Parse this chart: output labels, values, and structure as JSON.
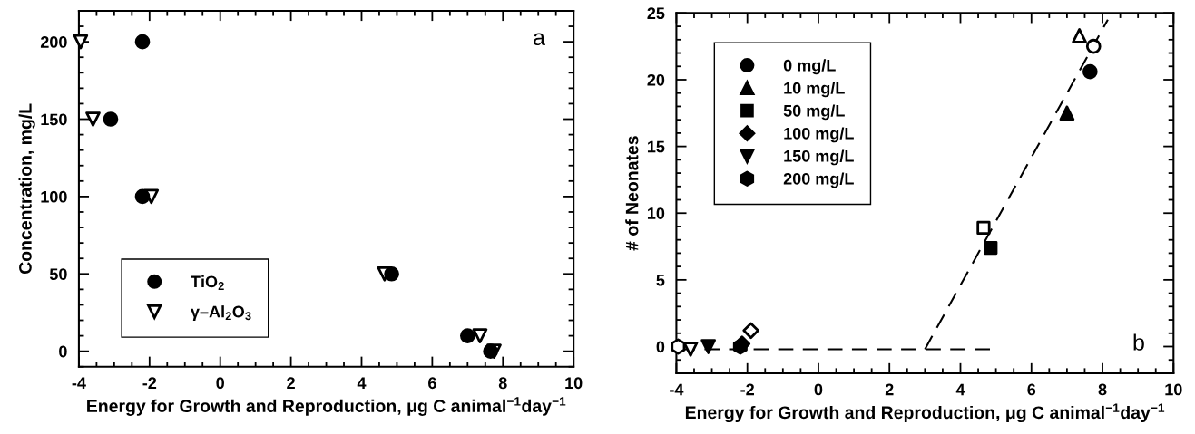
{
  "chart_data": [
    {
      "type": "scatter",
      "xlabel": "Energy for Growth and Reproduction, μg C animal$^{−1}$day$^{−1}$",
      "ylabel": "Concentration, mg/L",
      "xlim": [
        -4,
        10
      ],
      "xticks": [
        -4,
        -2,
        0,
        2,
        4,
        6,
        8,
        10
      ],
      "ylim": [
        -10,
        220
      ],
      "yticks": [
        0,
        50,
        100,
        150,
        200
      ],
      "grid": false,
      "legend": "bottom left",
      "annotations": [
        "a"
      ],
      "series": [
        {
          "name": "TiO$_{2}$",
          "color": "#000000",
          "marker": "circle",
          "x": [
            -2.2,
            -3.1,
            -2.2,
            4.85,
            7.0,
            7.65
          ],
          "values": [
            200,
            150,
            100,
            50,
            10,
            0
          ]
        },
        {
          "name": "γ–Al$_{2}$O$_{3}$",
          "color": "#ffffff",
          "marker": "triangle_down",
          "x": [
            -3.95,
            -3.6,
            -1.95,
            4.65,
            7.35,
            7.75
          ],
          "values": [
            200,
            150,
            100,
            50,
            10,
            0
          ]
        }
      ]
    },
    {
      "type": "scatter",
      "xlabel": "Energy for Growth and Reproduction, μg C animal$^{−1}$day$^{−1}$",
      "ylabel": "# of Neonates",
      "xlim": [
        -4,
        10
      ],
      "xticks": [
        -4,
        -2,
        0,
        2,
        4,
        6,
        8,
        10
      ],
      "ylim": [
        -2,
        25
      ],
      "yticks": [
        0,
        5,
        10,
        15,
        20,
        25
      ],
      "grid": false,
      "legend": "top left",
      "annotations": [
        "b"
      ],
      "series": [
        {
          "name": "0 mg/L",
          "color": "#000000",
          "marker": "circle",
          "x": [
            7.65
          ],
          "values": [
            20.6
          ]
        },
        {
          "name": "10 mg/L",
          "color": "#000000",
          "marker": "triangle",
          "x": [
            7.0
          ],
          "values": [
            17.5
          ]
        },
        {
          "name": "50 mg/L",
          "color": "#000000",
          "marker": "square",
          "x": [
            4.85
          ],
          "values": [
            7.4
          ]
        },
        {
          "name": "100 mg/L",
          "color": "#000000",
          "marker": "diamond",
          "x": [
            -2.15
          ],
          "values": [
            0.2
          ]
        },
        {
          "name": "150 mg/L",
          "color": "#000000",
          "marker": "triangle_down",
          "x": [
            -3.1
          ],
          "values": [
            0
          ]
        },
        {
          "name": "200 mg/L",
          "color": "#000000",
          "x": [
            -2.2
          ],
          "values": [
            0
          ]
        },
        {
          "color": "#ffffff",
          "marker": "circle",
          "x": [
            7.75
          ],
          "values": [
            22.5
          ]
        },
        {
          "color": "#ffffff",
          "marker": "triangle",
          "x": [
            7.35
          ],
          "values": [
            23.3
          ]
        },
        {
          "color": "#ffffff",
          "marker": "square",
          "x": [
            4.65
          ],
          "values": [
            8.9
          ]
        },
        {
          "color": "#ffffff",
          "marker": "diamond",
          "x": [
            -1.9
          ],
          "values": [
            1.2
          ]
        },
        {
          "color": "#ffffff",
          "marker": "triangle_down",
          "x": [
            -3.6
          ],
          "values": [
            -0.2
          ]
        },
        {
          "color": "#ffffff",
          "x": [
            -3.95
          ],
          "values": [
            0
          ]
        },
        {
          "type": "line",
          "color": "#000000",
          "line_style": "dashed",
          "marker": "none",
          "x": [
            -3.9,
            4.9
          ],
          "values": [
            -0.2,
            -0.2
          ]
        },
        {
          "type": "line",
          "color": "#000000",
          "line_style": "dashed",
          "marker": "none",
          "x": [
            3.0,
            8.15
          ],
          "values": [
            -0.2,
            24.5
          ]
        }
      ]
    }
  ]
}
